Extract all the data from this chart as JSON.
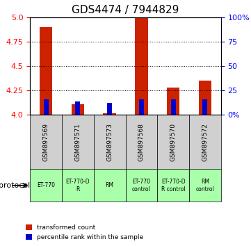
{
  "title": "GDS4474 / 7944829",
  "samples": [
    "GSM897569",
    "GSM897571",
    "GSM897573",
    "GSM897568",
    "GSM897570",
    "GSM897572"
  ],
  "red_values": [
    4.9,
    4.11,
    4.02,
    5.0,
    4.28,
    4.35
  ],
  "blue_values": [
    4.16,
    4.14,
    4.12,
    4.16,
    4.16,
    4.16
  ],
  "red_base": 4.0,
  "ylim": [
    4.0,
    5.0
  ],
  "y_ticks_left": [
    4.0,
    4.25,
    4.5,
    4.75,
    5.0
  ],
  "y_ticks_right": [
    0,
    25,
    50,
    75,
    100
  ],
  "y_ticks_right_labels": [
    "0%",
    "25",
    "50",
    "75",
    "100%"
  ],
  "protocols": [
    "ET-770",
    "ET-770-D\nR",
    "RM",
    "ET-770\ncontrol",
    "ET-770-D\nR control",
    "RM\ncontrol"
  ],
  "protocol_colors": [
    "#ccffcc",
    "#ccffcc",
    "#ccffcc",
    "#ccffcc",
    "#ccffcc",
    "#ccffcc"
  ],
  "sample_bg_color": "#d0d0d0",
  "bar_color_red": "#cc2200",
  "bar_color_blue": "#0000cc",
  "grid_color": "#000000",
  "title_fontsize": 11,
  "tick_fontsize": 8,
  "legend_items": [
    "transformed count",
    "percentile rank within the sample"
  ],
  "xlabel_fontsize": 8
}
